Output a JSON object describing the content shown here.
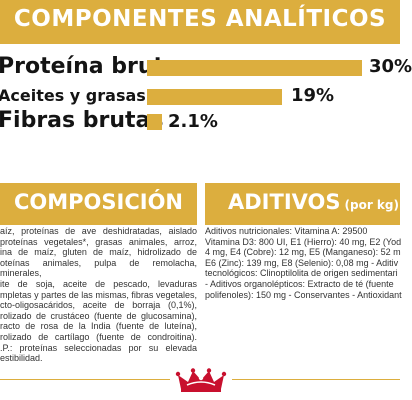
{
  "analytic": {
    "title": "COMPONENTES ANALÍTICOS",
    "rows": [
      {
        "label": "Proteína bruta",
        "value": "30%",
        "fraction": 0.3
      },
      {
        "label": "Aceites y grasas brutos",
        "value": "19%",
        "fraction": 0.19
      },
      {
        "label": "Fibras brutas",
        "value": "2.1%",
        "fraction": 0.021
      }
    ]
  },
  "composicion": {
    "title": "COMPOSICIÓN",
    "lines": [
      "aíz, proteínas de ave deshidratadas, aislado",
      "proteínas vegetales*, grasas animales, arroz,",
      "ina de maíz, gluten de maíz, hidrolizado de",
      "oteínas animales, pulpa de remolacha, minerales,",
      "ite de soja, aceite de pescado, levaduras",
      "mpletas y partes de las mismas, fibras vegetales,",
      "cto-oligosacáridos, aceite de borraja (0,1%),",
      "rolizado de crustáceo (fuente de glucosamina),",
      "racto de rosa de la India (fuente de luteína),",
      "rolizado de cartílago (fuente de condroitina).",
      ".P.: proteínas seleccionadas por su elevada",
      "estibilidad."
    ]
  },
  "aditivos": {
    "title": "ADITIVOS",
    "subtitle": "(por kg)",
    "lines": [
      "Aditivos nutricionales: Vitamina A: 29500",
      "Vitamina D3: 800 UI, E1 (Hierro): 40 mg, E2 (Yod",
      "4 mg, E4 (Cobre): 12 mg, E5 (Manganeso): 52 m",
      "E6 (Zinc): 139 mg, E8 (Selenio): 0,08 mg - Aditiv",
      "tecnológicos: Clinoptilolita de origen sedimentari",
      "- Aditivos organolépticos: Extracto de té (fuente",
      "polifenoles): 150 mg - Conservantes - Antioxidant"
    ]
  },
  "colors": {
    "accent": "#dcae3e",
    "brand_red": "#c8102e"
  },
  "footer": {
    "logo": "crown-logo-icon"
  }
}
